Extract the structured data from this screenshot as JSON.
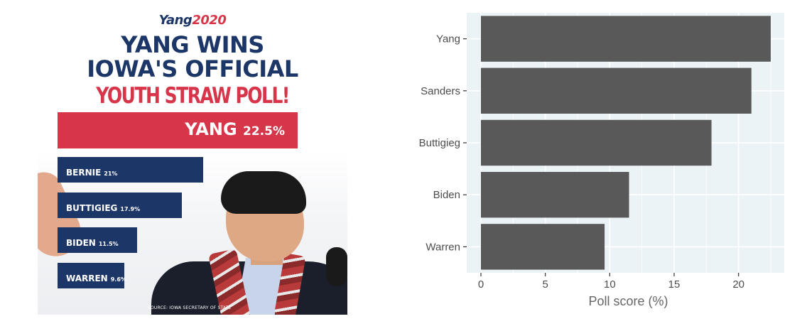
{
  "infographic": {
    "brand_prefix": "Yang",
    "brand_year": "2020",
    "headline_line1": "YANG WINS",
    "headline_line2": "IOWA'S OFFICIAL",
    "subheadline": "YOUTH STRAW POLL!",
    "winner": {
      "name": "YANG",
      "value": "22.5%",
      "fraction": 0.225
    },
    "others": [
      {
        "name": "BERNIE",
        "value": "21%",
        "fraction": 0.21
      },
      {
        "name": "BUTTIGIEG",
        "value": "17.9%",
        "fraction": 0.179
      },
      {
        "name": "BIDEN",
        "value": "11.5%",
        "fraction": 0.115
      },
      {
        "name": "WARREN",
        "value": "9.6%",
        "fraction": 0.096
      }
    ],
    "source": "SOURCE: IOWA SECRETARY OF STATE",
    "colors": {
      "navy": "#1b3667",
      "red": "#d7354a"
    }
  },
  "chart_data": {
    "type": "bar",
    "orientation": "horizontal",
    "categories": [
      "Yang",
      "Sanders",
      "Buttigieg",
      "Biden",
      "Warren"
    ],
    "values": [
      22.5,
      21.0,
      17.9,
      11.5,
      9.6
    ],
    "title": "",
    "xlabel": "Poll score (%)",
    "ylabel": "",
    "xlim": [
      0,
      23.6
    ],
    "xticks": [
      0,
      5,
      10,
      15,
      20
    ],
    "grid": true,
    "colors": {
      "bar": "#595959",
      "panel": "#ebf3f6",
      "grid": "#ffffff"
    }
  }
}
